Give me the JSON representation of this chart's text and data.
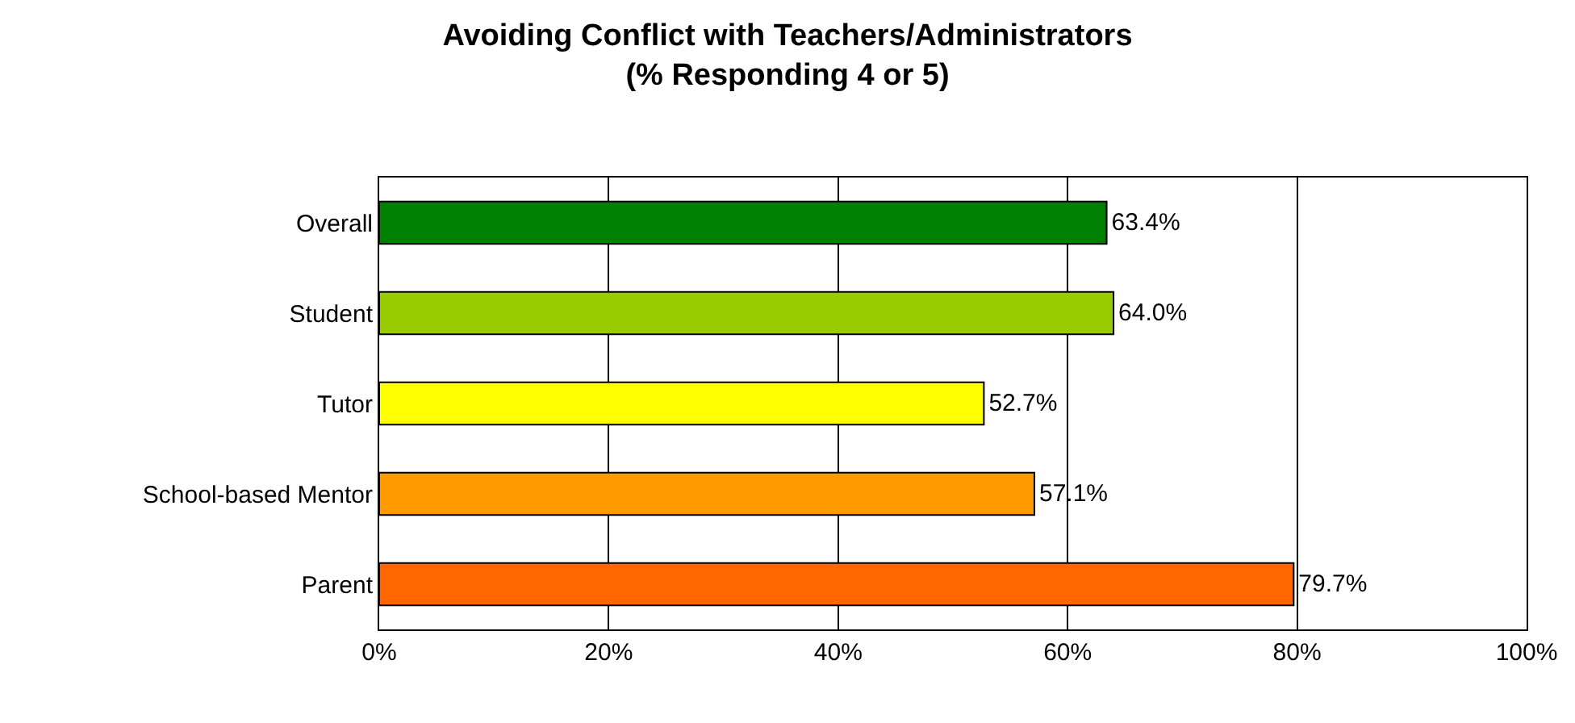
{
  "chart_data": {
    "type": "bar",
    "orientation": "horizontal",
    "title": "Avoiding Conflict with Teachers/Administrators\n(% Responding 4 or 5)",
    "categories": [
      "Overall",
      "Student",
      "Tutor",
      "School-based Mentor",
      "Parent"
    ],
    "values": [
      63.4,
      64.0,
      52.7,
      57.1,
      79.7
    ],
    "colors": [
      "#008000",
      "#99cc00",
      "#ffff00",
      "#ff9900",
      "#ff6600"
    ],
    "value_labels": [
      "63.4%",
      "64.0%",
      "52.7%",
      "57.1%",
      "79.7%"
    ],
    "xlim": [
      0,
      100
    ],
    "xticks": [
      {
        "value": 0,
        "label": "0%"
      },
      {
        "value": 20,
        "label": "20%"
      },
      {
        "value": 40,
        "label": "40%"
      },
      {
        "value": 60,
        "label": "60%"
      },
      {
        "value": 80,
        "label": "80%"
      },
      {
        "value": 100,
        "label": "100%"
      }
    ],
    "grid": "x",
    "legend": false
  }
}
